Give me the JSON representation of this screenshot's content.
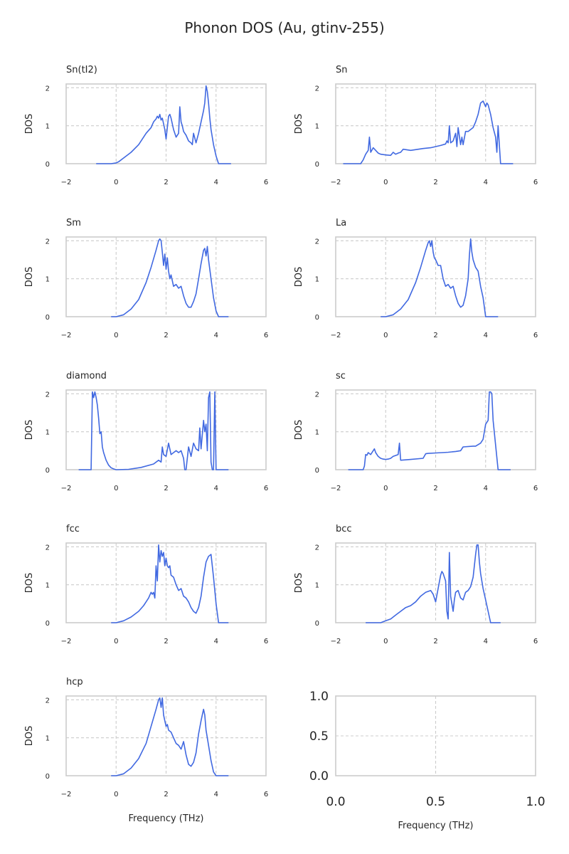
{
  "figure": {
    "title": "Phonon DOS (Au, gtinv-255)"
  },
  "colors": {
    "line": "#4169e1"
  },
  "chart_data": [
    {
      "type": "line",
      "title": "Sn(tI2)",
      "xlabel": "",
      "ylabel": "DOS",
      "xlim": [
        -2,
        6
      ],
      "ylim": [
        0,
        2.1
      ],
      "xticks": [
        "−2",
        "0",
        "2",
        "4",
        "6"
      ],
      "yticks": [
        "0",
        "1",
        "2"
      ],
      "grid": true,
      "series": [
        {
          "x": [
            -0.8,
            -0.2,
            0,
            0.1,
            0.3,
            0.6,
            0.9,
            1.2,
            1.4,
            1.5,
            1.6,
            1.65,
            1.7,
            1.75,
            1.8,
            1.85,
            1.9,
            1.95,
            2.0,
            2.1,
            2.15,
            2.2,
            2.3,
            2.4,
            2.5,
            2.55,
            2.6,
            2.65,
            2.7,
            2.8,
            2.9,
            3.0,
            3.05,
            3.1,
            3.2,
            3.3,
            3.4,
            3.5,
            3.55,
            3.6,
            3.65,
            3.7,
            3.75,
            3.8,
            3.9,
            4.0,
            4.1,
            4.3,
            4.6
          ],
          "y": [
            0,
            0,
            0.02,
            0.05,
            0.15,
            0.3,
            0.5,
            0.8,
            0.95,
            1.1,
            1.18,
            1.25,
            1.2,
            1.3,
            1.15,
            1.2,
            1.05,
            0.9,
            0.65,
            1.25,
            1.3,
            1.2,
            0.9,
            0.7,
            0.8,
            1.5,
            1.1,
            1.0,
            0.85,
            0.75,
            0.6,
            0.55,
            0.5,
            0.8,
            0.55,
            0.8,
            1.1,
            1.4,
            1.6,
            2.05,
            1.9,
            1.6,
            1.2,
            0.9,
            0.5,
            0.2,
            0,
            0,
            0
          ]
        }
      ]
    },
    {
      "type": "line",
      "title": "Sn",
      "xlabel": "",
      "ylabel": "DOS",
      "xlim": [
        -2,
        6
      ],
      "ylim": [
        0,
        2.1
      ],
      "xticks": [
        "−2",
        "0",
        "2",
        "4",
        "6"
      ],
      "yticks": [
        "0",
        "1",
        "2"
      ],
      "grid": true,
      "series": [
        {
          "x": [
            -1.7,
            -1.0,
            -0.9,
            -0.8,
            -0.7,
            -0.65,
            -0.6,
            -0.5,
            -0.4,
            -0.3,
            -0.2,
            -0.1,
            0,
            0.2,
            0.3,
            0.4,
            0.5,
            0.6,
            0.7,
            1.0,
            1.5,
            1.8,
            2.0,
            2.2,
            2.4,
            2.45,
            2.5,
            2.55,
            2.6,
            2.7,
            2.8,
            2.85,
            2.9,
            3.0,
            3.05,
            3.1,
            3.2,
            3.3,
            3.4,
            3.5,
            3.6,
            3.7,
            3.8,
            3.9,
            4.0,
            4.05,
            4.1,
            4.2,
            4.3,
            4.4,
            4.45,
            4.5,
            4.6,
            5.1
          ],
          "y": [
            0,
            0,
            0.1,
            0.25,
            0.35,
            0.7,
            0.3,
            0.42,
            0.35,
            0.28,
            0.25,
            0.24,
            0.23,
            0.22,
            0.3,
            0.25,
            0.28,
            0.3,
            0.38,
            0.35,
            0.4,
            0.42,
            0.45,
            0.48,
            0.52,
            0.6,
            0.55,
            1.0,
            0.55,
            0.6,
            0.8,
            0.45,
            0.95,
            0.5,
            0.7,
            0.5,
            0.85,
            0.85,
            0.9,
            0.95,
            1.1,
            1.3,
            1.6,
            1.65,
            1.5,
            1.6,
            1.55,
            1.3,
            0.95,
            0.7,
            0.3,
            1.0,
            0,
            0
          ]
        }
      ]
    },
    {
      "type": "line",
      "title": "Sm",
      "xlabel": "",
      "ylabel": "DOS",
      "xlim": [
        -2,
        6
      ],
      "ylim": [
        0,
        2.1
      ],
      "xticks": [
        "−2",
        "0",
        "2",
        "4",
        "6"
      ],
      "yticks": [
        "0",
        "1",
        "2"
      ],
      "grid": true,
      "series": [
        {
          "x": [
            -0.2,
            0,
            0.3,
            0.6,
            0.9,
            1.2,
            1.4,
            1.6,
            1.7,
            1.75,
            1.8,
            1.85,
            1.9,
            1.95,
            2.0,
            2.05,
            2.1,
            2.15,
            2.2,
            2.3,
            2.4,
            2.5,
            2.6,
            2.7,
            2.8,
            2.9,
            3.0,
            3.1,
            3.2,
            3.3,
            3.4,
            3.5,
            3.55,
            3.6,
            3.65,
            3.7,
            3.8,
            3.9,
            4.0,
            4.1,
            4.5
          ],
          "y": [
            0,
            0,
            0.05,
            0.2,
            0.45,
            0.9,
            1.3,
            1.75,
            2.0,
            2.05,
            2.0,
            1.7,
            1.35,
            1.65,
            1.25,
            1.55,
            1.2,
            1.0,
            1.1,
            0.8,
            0.85,
            0.75,
            0.8,
            0.55,
            0.35,
            0.25,
            0.25,
            0.4,
            0.6,
            1.0,
            1.4,
            1.75,
            1.8,
            1.6,
            1.85,
            1.5,
            1.0,
            0.5,
            0.15,
            0,
            0
          ]
        }
      ]
    },
    {
      "type": "line",
      "title": "La",
      "xlabel": "",
      "ylabel": "DOS",
      "xlim": [
        -2,
        6
      ],
      "ylim": [
        0,
        2.1
      ],
      "xticks": [
        "−2",
        "0",
        "2",
        "4",
        "6"
      ],
      "yticks": [
        "0",
        "1",
        "2"
      ],
      "grid": true,
      "series": [
        {
          "x": [
            -0.2,
            0,
            0.3,
            0.6,
            0.9,
            1.2,
            1.4,
            1.6,
            1.7,
            1.75,
            1.8,
            1.85,
            1.9,
            1.95,
            2.0,
            2.1,
            2.2,
            2.3,
            2.4,
            2.5,
            2.6,
            2.7,
            2.8,
            2.9,
            3.0,
            3.1,
            3.2,
            3.3,
            3.35,
            3.4,
            3.45,
            3.5,
            3.6,
            3.7,
            3.8,
            3.9,
            4.0,
            4.5
          ],
          "y": [
            0,
            0,
            0.05,
            0.2,
            0.45,
            0.9,
            1.3,
            1.75,
            1.95,
            2.0,
            1.85,
            2.0,
            1.7,
            1.55,
            1.5,
            1.35,
            1.35,
            1.0,
            0.8,
            0.85,
            0.75,
            0.8,
            0.55,
            0.35,
            0.25,
            0.3,
            0.55,
            1.0,
            1.6,
            2.05,
            1.7,
            1.5,
            1.3,
            1.2,
            0.8,
            0.5,
            0,
            0
          ]
        }
      ]
    },
    {
      "type": "line",
      "title": "diamond",
      "xlabel": "",
      "ylabel": "DOS",
      "xlim": [
        -2,
        6
      ],
      "ylim": [
        0,
        2.1
      ],
      "xticks": [
        "−2",
        "0",
        "2",
        "4",
        "6"
      ],
      "yticks": [
        "0",
        "1",
        "2"
      ],
      "grid": true,
      "series": [
        {
          "x": [
            -1.5,
            -1.0,
            -0.95,
            -0.9,
            -0.85,
            -0.8,
            -0.75,
            -0.7,
            -0.65,
            -0.6,
            -0.55,
            -0.5,
            -0.4,
            -0.3,
            -0.2,
            -0.1,
            0,
            0.5,
            1.0,
            1.5,
            1.7,
            1.8,
            1.85,
            1.9,
            2.0,
            2.1,
            2.2,
            2.3,
            2.4,
            2.5,
            2.6,
            2.7,
            2.75,
            2.8,
            2.9,
            3.0,
            3.1,
            3.2,
            3.3,
            3.35,
            3.4,
            3.5,
            3.55,
            3.6,
            3.65,
            3.7,
            3.75,
            3.8,
            3.85,
            3.9,
            3.95,
            4.0,
            4.5
          ],
          "y": [
            0,
            0,
            2.05,
            1.9,
            2.05,
            1.9,
            1.7,
            1.35,
            0.95,
            1.0,
            0.6,
            0.45,
            0.25,
            0.12,
            0.05,
            0.02,
            0,
            0.01,
            0.06,
            0.15,
            0.25,
            0.2,
            0.6,
            0.4,
            0.35,
            0.7,
            0.4,
            0.45,
            0.5,
            0.45,
            0.5,
            0.3,
            0,
            0,
            0.6,
            0.35,
            0.7,
            0.55,
            0.5,
            1.1,
            0.55,
            1.3,
            1.0,
            1.2,
            0.5,
            1.9,
            2.05,
            0.2,
            0,
            0,
            2.05,
            0,
            0
          ]
        }
      ]
    },
    {
      "type": "line",
      "title": "sc",
      "xlabel": "",
      "ylabel": "DOS",
      "xlim": [
        -2,
        6
      ],
      "ylim": [
        0,
        2.1
      ],
      "xticks": [
        "−2",
        "0",
        "2",
        "4",
        "6"
      ],
      "yticks": [
        "0",
        "1",
        "2"
      ],
      "grid": true,
      "series": [
        {
          "x": [
            -1.5,
            -0.9,
            -0.85,
            -0.8,
            -0.75,
            -0.7,
            -0.6,
            -0.5,
            -0.45,
            -0.4,
            -0.3,
            -0.2,
            -0.1,
            0,
            0.1,
            0.2,
            0.3,
            0.5,
            0.55,
            0.6,
            1.0,
            1.5,
            1.6,
            1.7,
            2.0,
            2.5,
            2.8,
            3.0,
            3.1,
            3.5,
            3.6,
            3.8,
            3.9,
            4.0,
            4.1,
            4.15,
            4.2,
            4.25,
            4.3,
            4.5,
            5.0
          ],
          "y": [
            0,
            0,
            0.1,
            0.4,
            0.38,
            0.45,
            0.4,
            0.5,
            0.55,
            0.45,
            0.35,
            0.3,
            0.28,
            0.27,
            0.28,
            0.3,
            0.35,
            0.4,
            0.7,
            0.25,
            0.27,
            0.3,
            0.42,
            0.43,
            0.44,
            0.46,
            0.48,
            0.5,
            0.6,
            0.62,
            0.62,
            0.7,
            0.8,
            1.2,
            1.3,
            2.05,
            2.05,
            2.0,
            1.3,
            0,
            0
          ]
        }
      ]
    },
    {
      "type": "line",
      "title": "fcc",
      "xlabel": "",
      "ylabel": "DOS",
      "xlim": [
        -2,
        6
      ],
      "ylim": [
        0,
        2.1
      ],
      "xticks": [
        "−2",
        "0",
        "2",
        "4",
        "6"
      ],
      "yticks": [
        "0",
        "1",
        "2"
      ],
      "grid": true,
      "series": [
        {
          "x": [
            -0.2,
            0,
            0.3,
            0.6,
            0.9,
            1.1,
            1.2,
            1.3,
            1.4,
            1.45,
            1.5,
            1.55,
            1.6,
            1.65,
            1.7,
            1.75,
            1.8,
            1.85,
            1.9,
            1.95,
            2.0,
            2.05,
            2.1,
            2.15,
            2.2,
            2.3,
            2.4,
            2.5,
            2.6,
            2.7,
            2.8,
            2.9,
            3.0,
            3.1,
            3.2,
            3.3,
            3.4,
            3.5,
            3.6,
            3.7,
            3.8,
            3.9,
            4.0,
            4.1,
            4.5
          ],
          "y": [
            0,
            0,
            0.05,
            0.15,
            0.3,
            0.45,
            0.55,
            0.65,
            0.8,
            0.75,
            0.8,
            0.65,
            1.5,
            1.1,
            2.05,
            1.6,
            1.9,
            1.75,
            1.85,
            1.5,
            1.7,
            1.5,
            1.45,
            1.5,
            1.25,
            1.2,
            1.0,
            0.85,
            0.9,
            0.7,
            0.65,
            0.55,
            0.4,
            0.3,
            0.25,
            0.4,
            0.7,
            1.2,
            1.6,
            1.75,
            1.8,
            1.2,
            0.5,
            0,
            0
          ]
        }
      ]
    },
    {
      "type": "line",
      "title": "bcc",
      "xlabel": "",
      "ylabel": "DOS",
      "xlim": [
        -2,
        6
      ],
      "ylim": [
        0,
        2.1
      ],
      "xticks": [
        "−2",
        "0",
        "2",
        "4",
        "6"
      ],
      "yticks": [
        "0",
        "1",
        "2"
      ],
      "grid": true,
      "series": [
        {
          "x": [
            -0.8,
            -0.2,
            0,
            0.2,
            0.4,
            0.6,
            0.8,
            1.0,
            1.2,
            1.4,
            1.6,
            1.8,
            1.9,
            2.0,
            2.1,
            2.2,
            2.25,
            2.3,
            2.4,
            2.45,
            2.5,
            2.55,
            2.6,
            2.65,
            2.7,
            2.75,
            2.8,
            2.9,
            3.0,
            3.1,
            3.2,
            3.3,
            3.4,
            3.5,
            3.6,
            3.65,
            3.7,
            3.75,
            3.8,
            3.9,
            4.0,
            4.1,
            4.2,
            4.6
          ],
          "y": [
            0,
            0,
            0.05,
            0.1,
            0.2,
            0.3,
            0.4,
            0.45,
            0.55,
            0.7,
            0.8,
            0.85,
            0.75,
            0.55,
            0.9,
            1.25,
            1.35,
            1.3,
            1.1,
            0.3,
            0.1,
            1.85,
            0.7,
            0.5,
            0.3,
            0.6,
            0.8,
            0.85,
            0.65,
            0.6,
            0.8,
            0.85,
            0.95,
            1.2,
            1.8,
            2.05,
            2.05,
            1.6,
            1.3,
            0.9,
            0.6,
            0.3,
            0,
            0
          ]
        }
      ]
    },
    {
      "type": "line",
      "title": "hcp",
      "xlabel": "Frequency (THz)",
      "ylabel": "DOS",
      "xlim": [
        -2,
        6
      ],
      "ylim": [
        0,
        2.1
      ],
      "xticks": [
        "−2",
        "0",
        "2",
        "4",
        "6"
      ],
      "yticks": [
        "0",
        "1",
        "2"
      ],
      "grid": true,
      "series": [
        {
          "x": [
            -0.2,
            0,
            0.3,
            0.6,
            0.9,
            1.2,
            1.4,
            1.6,
            1.7,
            1.75,
            1.8,
            1.85,
            1.9,
            1.95,
            2.0,
            2.05,
            2.1,
            2.2,
            2.3,
            2.4,
            2.5,
            2.6,
            2.7,
            2.8,
            2.9,
            3.0,
            3.1,
            3.2,
            3.3,
            3.4,
            3.45,
            3.5,
            3.55,
            3.6,
            3.7,
            3.8,
            3.9,
            4.0,
            4.5
          ],
          "y": [
            0,
            0,
            0.05,
            0.2,
            0.45,
            0.85,
            1.3,
            1.75,
            2.0,
            2.05,
            1.8,
            2.05,
            1.6,
            1.45,
            1.3,
            1.35,
            1.2,
            1.15,
            1.0,
            0.85,
            0.8,
            0.7,
            0.9,
            0.55,
            0.3,
            0.25,
            0.35,
            0.6,
            1.1,
            1.45,
            1.6,
            1.75,
            1.6,
            1.2,
            0.8,
            0.4,
            0.1,
            0,
            0
          ]
        }
      ]
    },
    {
      "type": "line",
      "title": "",
      "xlabel": "Frequency (THz)",
      "ylabel": "",
      "xlim": [
        0,
        1
      ],
      "ylim": [
        0,
        1
      ],
      "xticks": [
        "0.0",
        "0.5",
        "1.0"
      ],
      "yticks": [
        "0.0",
        "0.5",
        "1.0"
      ],
      "grid": true,
      "series": []
    }
  ]
}
